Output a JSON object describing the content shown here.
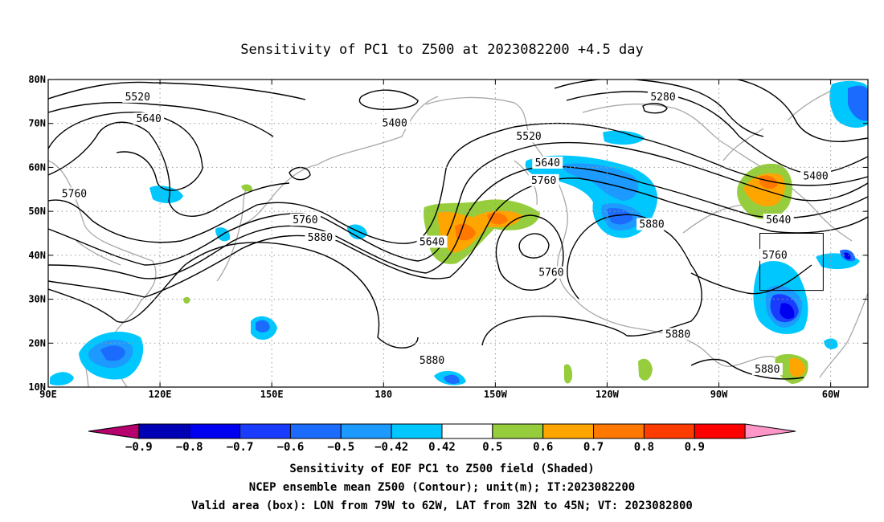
{
  "title": "Sensitivity of PC1 to Z500 at 2023082200 +4.5 day",
  "map": {
    "lon_range": [
      90,
      310
    ],
    "lat_range": [
      10,
      80
    ],
    "lat_ticks": [
      {
        "value": 80,
        "label": "80N"
      },
      {
        "value": 70,
        "label": "70N"
      },
      {
        "value": 60,
        "label": "60N"
      },
      {
        "value": 50,
        "label": "50N"
      },
      {
        "value": 40,
        "label": "40N"
      },
      {
        "value": 30,
        "label": "30N"
      },
      {
        "value": 20,
        "label": "20N"
      },
      {
        "value": 10,
        "label": "10N"
      }
    ],
    "lon_ticks": [
      {
        "value": 90,
        "label": "90E"
      },
      {
        "value": 120,
        "label": "120E"
      },
      {
        "value": 150,
        "label": "150E"
      },
      {
        "value": 180,
        "label": "180"
      },
      {
        "value": 210,
        "label": "150W"
      },
      {
        "value": 240,
        "label": "120W"
      },
      {
        "value": 270,
        "label": "90W"
      },
      {
        "value": 300,
        "label": "60W"
      }
    ],
    "grid": "dotted",
    "coastline_color": "#a8a8a8",
    "valid_box": {
      "lon": [
        281,
        298
      ],
      "lat": [
        32,
        45
      ]
    },
    "contour_labels": [
      {
        "text": "5520",
        "lon": 114,
        "lat": 76
      },
      {
        "text": "5640",
        "lon": 117,
        "lat": 71
      },
      {
        "text": "5400",
        "lon": 183,
        "lat": 70
      },
      {
        "text": "5280",
        "lon": 255,
        "lat": 76
      },
      {
        "text": "5520",
        "lon": 219,
        "lat": 67
      },
      {
        "text": "5640",
        "lon": 224,
        "lat": 61
      },
      {
        "text": "5760",
        "lon": 223,
        "lat": 57
      },
      {
        "text": "5760",
        "lon": 97,
        "lat": 54
      },
      {
        "text": "5760",
        "lon": 159,
        "lat": 48
      },
      {
        "text": "5880",
        "lon": 163,
        "lat": 44
      },
      {
        "text": "5640",
        "lon": 193,
        "lat": 43
      },
      {
        "text": "5760",
        "lon": 225,
        "lat": 36
      },
      {
        "text": "5880",
        "lon": 252,
        "lat": 47
      },
      {
        "text": "5640",
        "lon": 286,
        "lat": 48
      },
      {
        "text": "5400",
        "lon": 296,
        "lat": 58
      },
      {
        "text": "5760",
        "lon": 285,
        "lat": 40
      },
      {
        "text": "5880",
        "lon": 259,
        "lat": 22
      },
      {
        "text": "5880",
        "lon": 193,
        "lat": 16
      },
      {
        "text": "5880",
        "lon": 283,
        "lat": 14
      }
    ]
  },
  "colorbar": {
    "colors": [
      "#b5006e",
      "#0000b4",
      "#0000f0",
      "#1a3cff",
      "#1c6bff",
      "#1c9aff",
      "#00c8ff",
      "#ffffff",
      "#96cd3c",
      "#ffa500",
      "#ff7800",
      "#ff3c00",
      "#ff0000",
      "#ff96c8"
    ],
    "labels": [
      "-0.9",
      "-0.8",
      "-0.7",
      "-0.6",
      "-0.5",
      "-0.42",
      "0.42",
      "0.5",
      "0.6",
      "0.7",
      "0.8",
      "0.9"
    ]
  },
  "captions": [
    "Sensitivity of EOF PC1 to Z500 field (Shaded)",
    "NCEP ensemble mean Z500 (Contour); unit(m); IT:2023082200",
    "Valid area (box): LON from 79W to 62W, LAT from 32N to 45N; VT: 2023082800"
  ]
}
